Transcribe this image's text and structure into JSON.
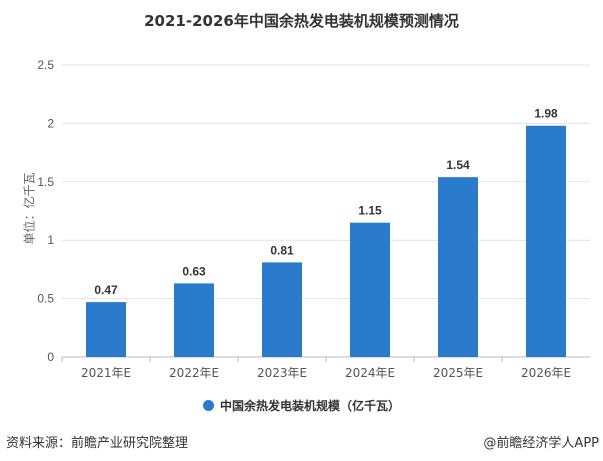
{
  "chart_data": {
    "type": "bar",
    "title": "2021-2026年中国余热发电装机规模预测情况",
    "ylabel": "单位：亿千瓦",
    "categories": [
      "2021年E",
      "2022年E",
      "2023年E",
      "2024年E",
      "2025年E",
      "2026年E"
    ],
    "series": [
      {
        "name": "中国余热发电装机规模（亿千瓦）",
        "values": [
          0.47,
          0.63,
          0.81,
          1.15,
          1.54,
          1.98
        ]
      }
    ],
    "yticks": [
      "0",
      "0.5",
      "1",
      "1.5",
      "2",
      "2.5"
    ],
    "ylim": [
      0,
      2.5
    ],
    "grid": true,
    "legend": "bottom",
    "color": "#2a7bcb"
  },
  "footer": {
    "source": "资料来源：前瞻产业研究院整理",
    "brand": "@前瞻经济学人APP"
  }
}
